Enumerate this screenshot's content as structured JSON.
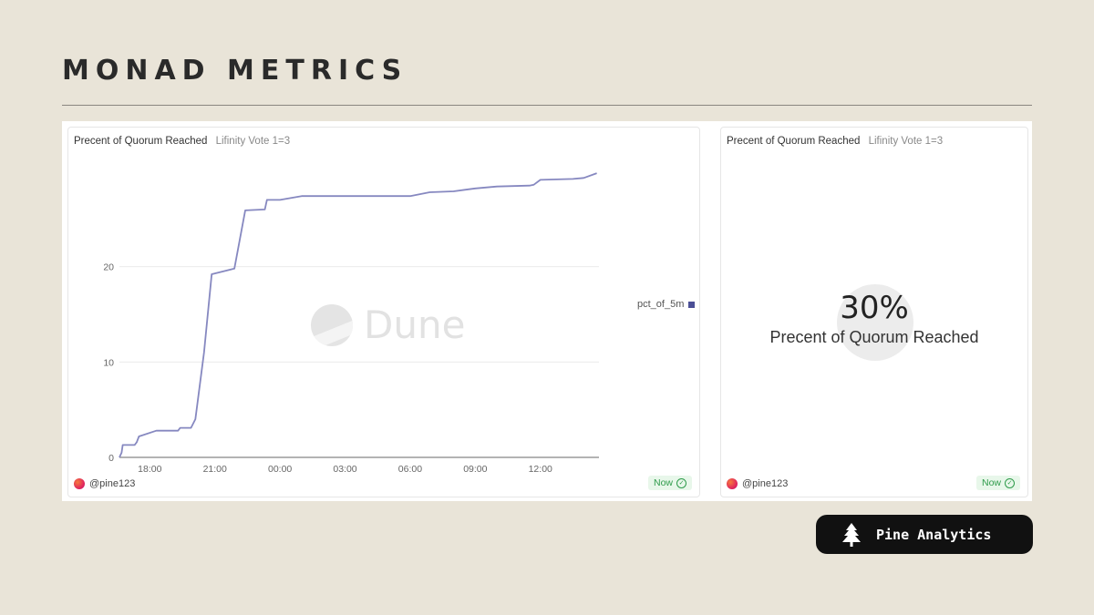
{
  "page": {
    "title": "MONAD METRICS"
  },
  "left_card": {
    "title": "Precent of Quorum Reached",
    "subtitle": "Lifinity Vote 1=3",
    "watermark": "Dune",
    "user": "@pine123",
    "status": "Now"
  },
  "right_card": {
    "title": "Precent of Quorum Reached",
    "subtitle": "Lifinity Vote 1=3",
    "counter_value": "30%",
    "counter_label": "Precent of Quorum Reached",
    "user": "@pine123",
    "status": "Now"
  },
  "brand": {
    "label": "Pine Analytics",
    "icon": "pine-tree-icon"
  },
  "chart_data": {
    "type": "line",
    "x_tick_labels": [
      "18:00",
      "21:00",
      "00:00",
      "03:00",
      "06:00",
      "09:00",
      "12:00"
    ],
    "x_ticks_hours": [
      18,
      21,
      24,
      27,
      30,
      33,
      36
    ],
    "xlim": [
      16.6,
      38.7
    ],
    "ylim": [
      0,
      30
    ],
    "y_ticks": [
      0,
      10,
      20
    ],
    "grid": true,
    "legend_position": "right",
    "series": [
      {
        "name": "pct_of_5m",
        "color": "#8688c0",
        "x": [
          16.6,
          16.7,
          16.75,
          17.3,
          17.4,
          17.5,
          18.3,
          19.3,
          19.4,
          19.9,
          20.1,
          20.5,
          20.85,
          21.9,
          22.4,
          23.3,
          23.4,
          24.0,
          25.0,
          27.0,
          28.0,
          30.0,
          30.9,
          32.0,
          33.0,
          34.0,
          35.5,
          35.7,
          36.0,
          37.5,
          38.0,
          38.6
        ],
        "y": [
          0,
          0.5,
          1.3,
          1.3,
          1.6,
          2.2,
          2.8,
          2.8,
          3.1,
          3.1,
          4.0,
          11.0,
          19.2,
          19.8,
          25.9,
          26.0,
          27.0,
          27.0,
          27.4,
          27.4,
          27.4,
          27.4,
          27.8,
          27.9,
          28.2,
          28.4,
          28.5,
          28.6,
          29.1,
          29.2,
          29.3,
          29.8
        ]
      }
    ]
  }
}
